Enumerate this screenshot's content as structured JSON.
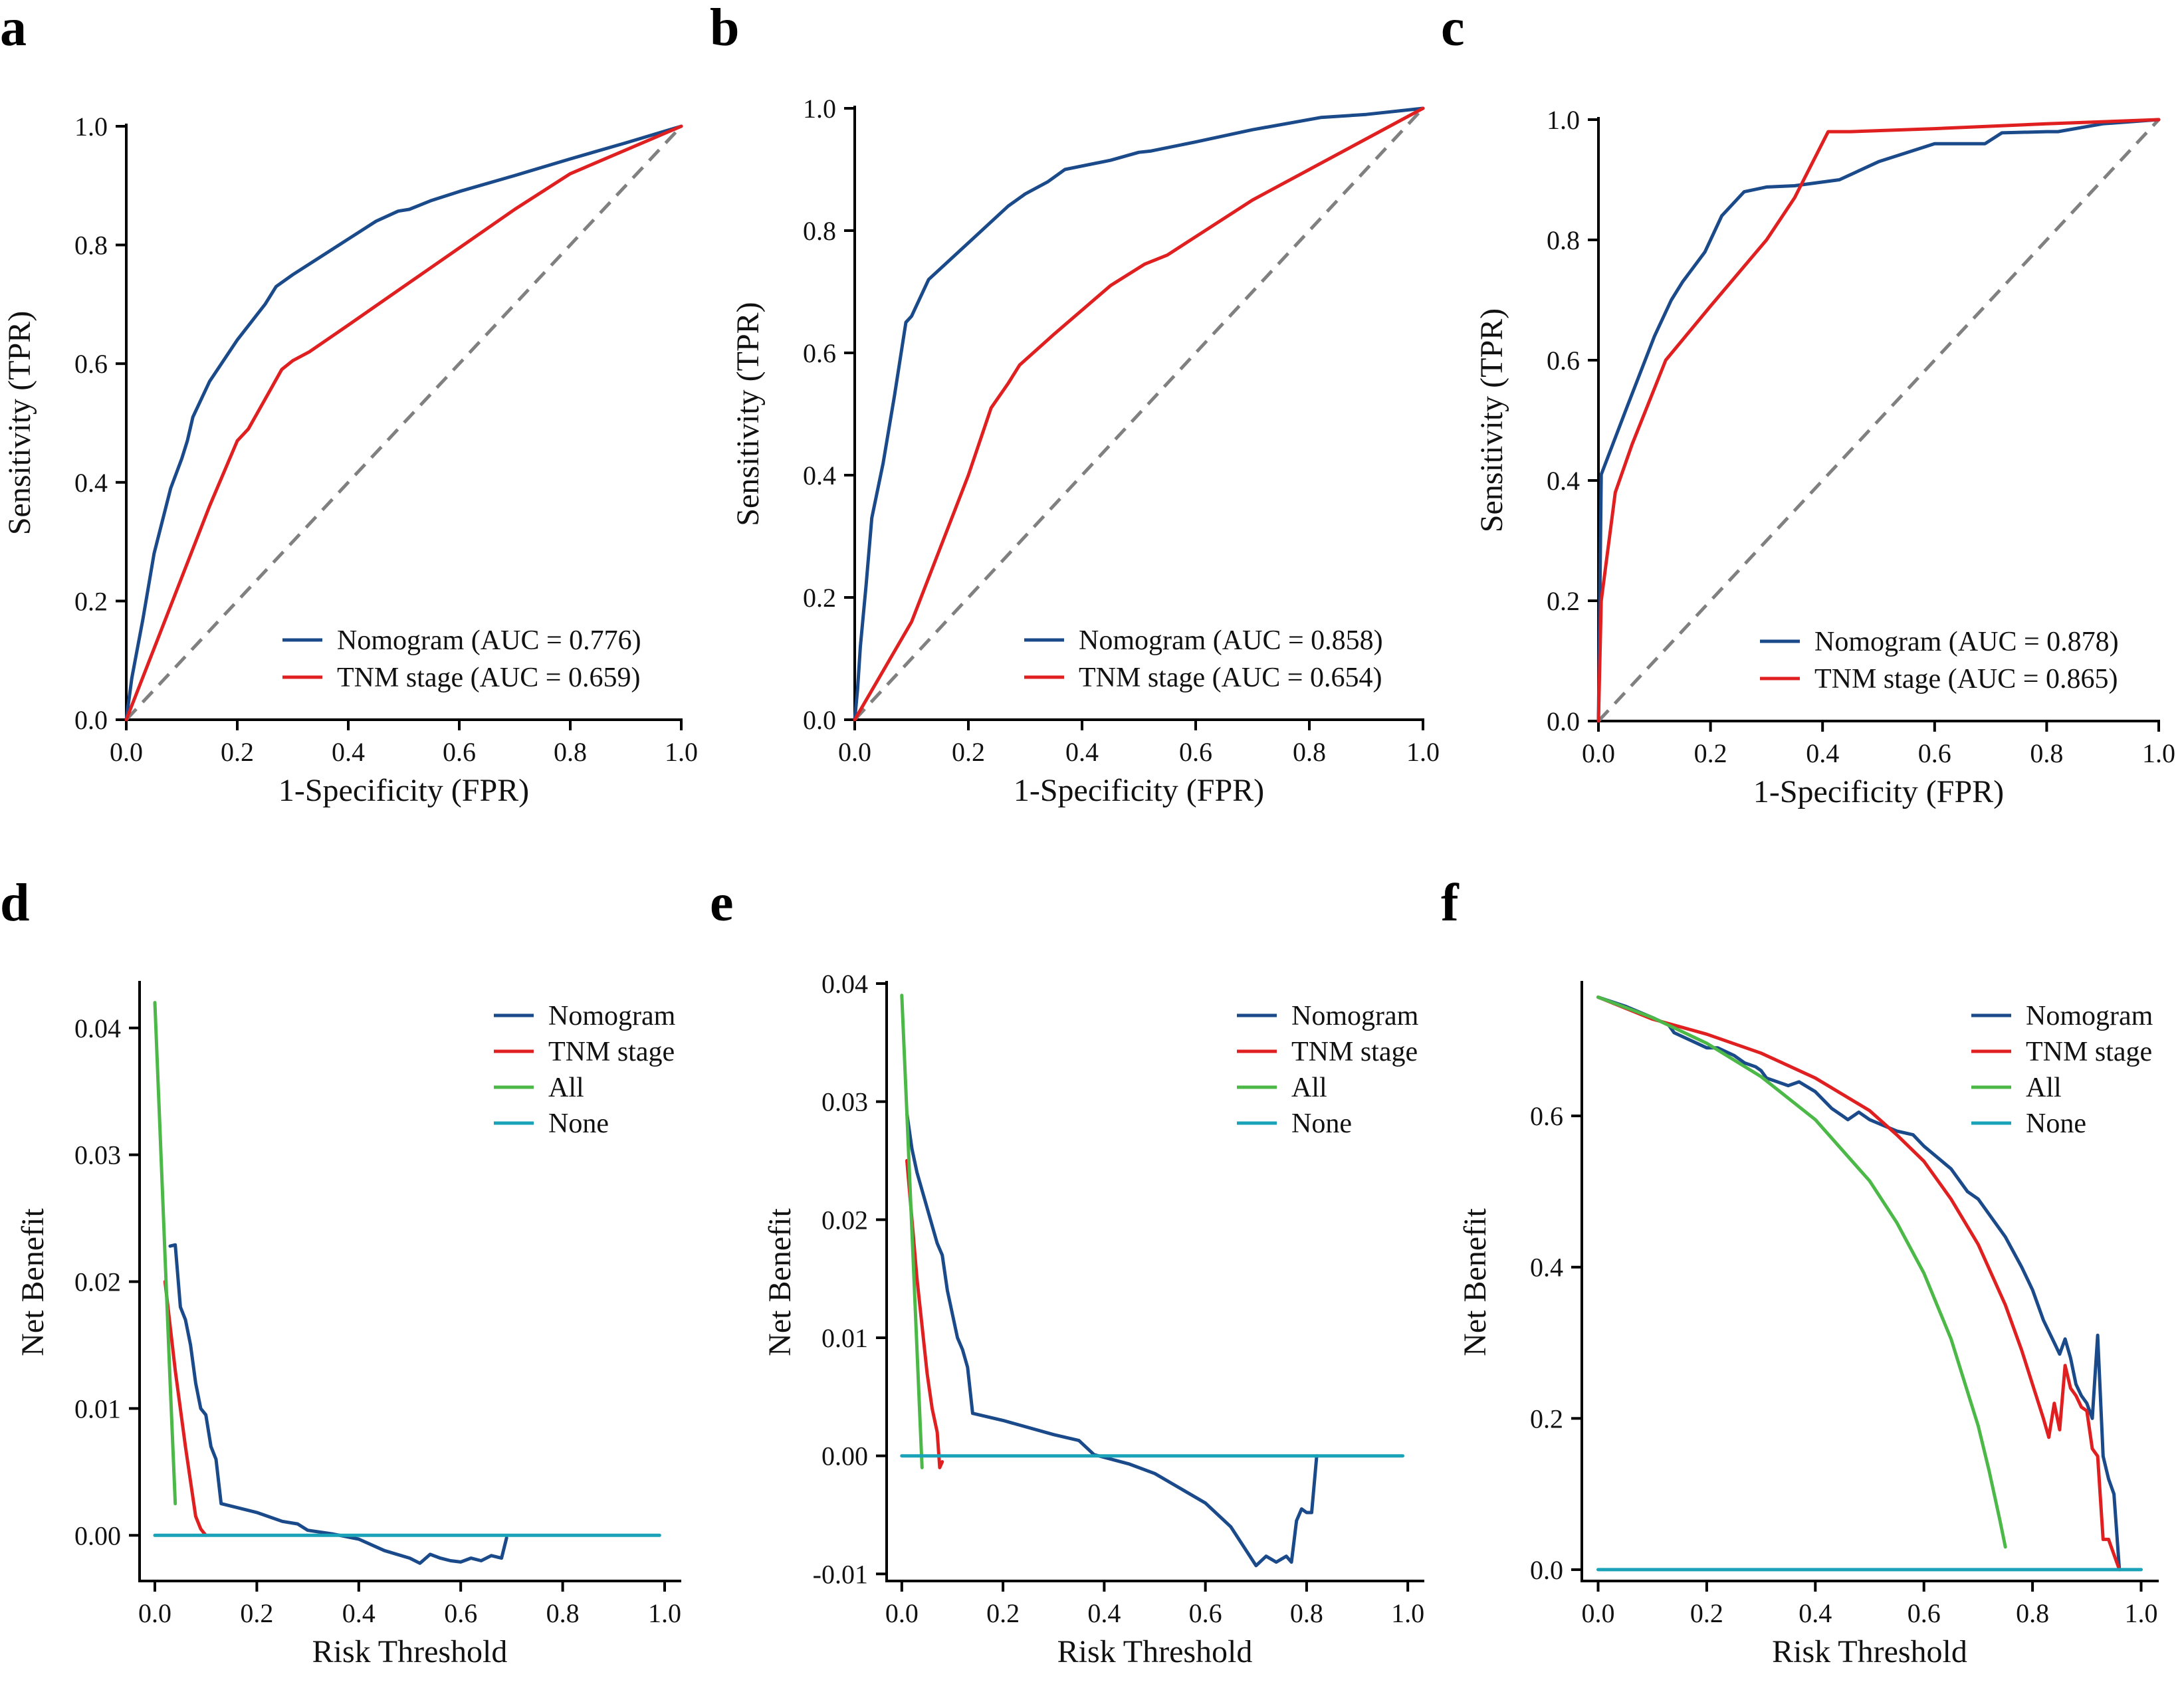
{
  "colors": {
    "nomogram": "#1a4a8a",
    "tnm": "#e02020",
    "all": "#4cb848",
    "none": "#1aa3b8",
    "reference": "#808080",
    "axis": "#000000"
  },
  "chart_data": [
    {
      "panel": "a",
      "type": "line",
      "kind": "roc",
      "xlabel": "1-Specificity (FPR)",
      "ylabel": "Sensitivity (TPR)",
      "xlim": [
        0,
        1
      ],
      "ylim": [
        0,
        1
      ],
      "xticks": [
        0.0,
        0.2,
        0.4,
        0.6,
        0.8,
        1.0
      ],
      "yticks": [
        0.0,
        0.2,
        0.4,
        0.6,
        0.8,
        1.0
      ],
      "legend_position": "bottom-right",
      "series": [
        {
          "name": "Nomogram (AUC = 0.776)",
          "color_key": "nomogram",
          "x": [
            0,
            0.01,
            0.03,
            0.05,
            0.08,
            0.1,
            0.11,
            0.12,
            0.15,
            0.2,
            0.25,
            0.27,
            0.3,
            0.35,
            0.4,
            0.45,
            0.49,
            0.51,
            0.55,
            0.6,
            0.7,
            0.8,
            0.9,
            1.0
          ],
          "y": [
            0,
            0.07,
            0.17,
            0.28,
            0.39,
            0.44,
            0.47,
            0.51,
            0.57,
            0.64,
            0.7,
            0.73,
            0.75,
            0.78,
            0.81,
            0.84,
            0.857,
            0.86,
            0.875,
            0.89,
            0.917,
            0.945,
            0.972,
            1.0
          ]
        },
        {
          "name": "TNM stage (AUC = 0.659)",
          "color_key": "tnm",
          "x": [
            0,
            0.05,
            0.1,
            0.15,
            0.2,
            0.22,
            0.25,
            0.28,
            0.3,
            0.33,
            0.4,
            0.5,
            0.6,
            0.7,
            0.8,
            0.9,
            1.0
          ],
          "y": [
            0,
            0.12,
            0.24,
            0.36,
            0.47,
            0.49,
            0.54,
            0.59,
            0.605,
            0.62,
            0.665,
            0.73,
            0.795,
            0.86,
            0.92,
            0.96,
            1.0
          ]
        }
      ]
    },
    {
      "panel": "b",
      "type": "line",
      "kind": "roc",
      "xlabel": "1-Specificity (FPR)",
      "ylabel": "Sensitivity (TPR)",
      "xlim": [
        0,
        1
      ],
      "ylim": [
        0,
        1
      ],
      "xticks": [
        0.0,
        0.2,
        0.4,
        0.6,
        0.8,
        1.0
      ],
      "yticks": [
        0.0,
        0.2,
        0.4,
        0.6,
        0.8,
        1.0
      ],
      "legend_position": "bottom-right",
      "series": [
        {
          "name": "Nomogram (AUC = 0.858)",
          "color_key": "nomogram",
          "x": [
            0,
            0.005,
            0.01,
            0.02,
            0.03,
            0.05,
            0.07,
            0.09,
            0.1,
            0.13,
            0.2,
            0.27,
            0.3,
            0.34,
            0.37,
            0.45,
            0.5,
            0.52,
            0.6,
            0.7,
            0.82,
            0.9,
            1.0
          ],
          "y": [
            0,
            0.05,
            0.12,
            0.22,
            0.33,
            0.42,
            0.53,
            0.65,
            0.66,
            0.72,
            0.78,
            0.84,
            0.86,
            0.88,
            0.9,
            0.915,
            0.928,
            0.93,
            0.945,
            0.965,
            0.985,
            0.99,
            1.0
          ]
        },
        {
          "name": "TNM stage (AUC = 0.654)",
          "color_key": "tnm",
          "x": [
            0,
            0.05,
            0.1,
            0.15,
            0.2,
            0.24,
            0.27,
            0.29,
            0.35,
            0.4,
            0.45,
            0.51,
            0.55,
            0.6,
            0.7,
            0.8,
            0.9,
            1.0
          ],
          "y": [
            0,
            0.08,
            0.16,
            0.28,
            0.4,
            0.51,
            0.55,
            0.58,
            0.63,
            0.67,
            0.71,
            0.745,
            0.76,
            0.79,
            0.85,
            0.9,
            0.95,
            1.0
          ]
        }
      ]
    },
    {
      "panel": "c",
      "type": "line",
      "kind": "roc",
      "xlabel": "1-Specificity (FPR)",
      "ylabel": "Sensitivity (TPR)",
      "xlim": [
        0,
        1
      ],
      "ylim": [
        0,
        1
      ],
      "xticks": [
        0.0,
        0.2,
        0.4,
        0.6,
        0.8,
        1.0
      ],
      "yticks": [
        0.0,
        0.2,
        0.4,
        0.6,
        0.8,
        1.0
      ],
      "legend_position": "bottom-right",
      "series": [
        {
          "name": "Nomogram (AUC = 0.878)",
          "color_key": "nomogram",
          "x": [
            0,
            0.005,
            0.05,
            0.1,
            0.13,
            0.15,
            0.19,
            0.22,
            0.25,
            0.26,
            0.3,
            0.35,
            0.43,
            0.5,
            0.6,
            0.69,
            0.72,
            0.8,
            0.82,
            0.9,
            1.0
          ],
          "y": [
            0,
            0.41,
            0.52,
            0.64,
            0.7,
            0.73,
            0.78,
            0.84,
            0.87,
            0.88,
            0.888,
            0.89,
            0.9,
            0.93,
            0.96,
            0.96,
            0.978,
            0.98,
            0.98,
            0.993,
            1.0
          ]
        },
        {
          "name": "TNM stage (AUC = 0.865)",
          "color_key": "tnm",
          "x": [
            0,
            0.005,
            0.03,
            0.06,
            0.12,
            0.2,
            0.3,
            0.35,
            0.41,
            0.45,
            0.6,
            0.8,
            1.0
          ],
          "y": [
            0,
            0.2,
            0.38,
            0.46,
            0.6,
            0.69,
            0.8,
            0.87,
            0.98,
            0.98,
            0.985,
            0.993,
            1.0
          ]
        }
      ]
    },
    {
      "panel": "d",
      "type": "line",
      "kind": "dca",
      "xlabel": "Risk Threshold",
      "ylabel": "Net Benefit",
      "xlim": [
        -0.03,
        1.03
      ],
      "ylim": [
        -0.0036,
        0.0435
      ],
      "xticks": [
        0.0,
        0.2,
        0.4,
        0.6,
        0.8,
        1.0
      ],
      "yticks": [
        0.0,
        0.01,
        0.02,
        0.03,
        0.04
      ],
      "yticklabels": [
        "0.00",
        "0.01",
        "0.02",
        "0.03",
        "0.04"
      ],
      "legend_position": "top-right",
      "series": [
        {
          "name": "Nomogram",
          "color_key": "nomogram",
          "x": [
            0.03,
            0.04,
            0.05,
            0.06,
            0.07,
            0.08,
            0.09,
            0.1,
            0.11,
            0.12,
            0.13,
            0.2,
            0.25,
            0.28,
            0.3,
            0.35,
            0.4,
            0.45,
            0.5,
            0.52,
            0.54,
            0.56,
            0.58,
            0.6,
            0.62,
            0.64,
            0.66,
            0.68,
            0.69
          ],
          "y": [
            0.0228,
            0.0229,
            0.018,
            0.017,
            0.015,
            0.012,
            0.01,
            0.0095,
            0.007,
            0.006,
            0.0025,
            0.0018,
            0.0011,
            0.0009,
            0.0004,
            0.0001,
            -0.0003,
            -0.0012,
            -0.0018,
            -0.0022,
            -0.0015,
            -0.0018,
            -0.002,
            -0.0021,
            -0.0018,
            -0.002,
            -0.0016,
            -0.0018,
            -0.0002
          ]
        },
        {
          "name": "TNM stage",
          "color_key": "tnm",
          "x": [
            0.02,
            0.04,
            0.06,
            0.08,
            0.09,
            0.1
          ],
          "y": [
            0.02,
            0.013,
            0.007,
            0.0015,
            0.0005,
            0
          ]
        },
        {
          "name": "All",
          "color_key": "all",
          "x": [
            0.0,
            0.01,
            0.02,
            0.03,
            0.04
          ],
          "y": [
            0.042,
            0.032,
            0.022,
            0.012,
            0.0025
          ]
        },
        {
          "name": "None",
          "color_key": "none",
          "x": [
            0.0,
            0.99
          ],
          "y": [
            0,
            0
          ]
        }
      ]
    },
    {
      "panel": "e",
      "type": "line",
      "kind": "dca",
      "xlabel": "Risk Threshold",
      "ylabel": "Net Benefit",
      "xlim": [
        -0.03,
        1.03
      ],
      "ylim": [
        -0.0106,
        0.04
      ],
      "xticks": [
        0.0,
        0.2,
        0.4,
        0.6,
        0.8,
        1.0
      ],
      "yticks": [
        -0.01,
        0.0,
        0.01,
        0.02,
        0.03,
        0.04
      ],
      "yticklabels": [
        "-0.01",
        "0.00",
        "0.01",
        "0.02",
        "0.03",
        "0.04"
      ],
      "legend_position": "top-right",
      "series": [
        {
          "name": "Nomogram",
          "color_key": "nomogram",
          "x": [
            0.01,
            0.02,
            0.03,
            0.05,
            0.07,
            0.08,
            0.09,
            0.1,
            0.11,
            0.12,
            0.13,
            0.14,
            0.2,
            0.3,
            0.35,
            0.38,
            0.45,
            0.5,
            0.6,
            0.65,
            0.7,
            0.72,
            0.74,
            0.76,
            0.77,
            0.78,
            0.79,
            0.8,
            0.81,
            0.82
          ],
          "y": [
            0.029,
            0.026,
            0.024,
            0.021,
            0.018,
            0.017,
            0.014,
            0.012,
            0.01,
            0.009,
            0.0075,
            0.0036,
            0.003,
            0.0018,
            0.0013,
            0.0001,
            -0.0007,
            -0.0015,
            -0.004,
            -0.006,
            -0.0093,
            -0.0085,
            -0.009,
            -0.0085,
            -0.009,
            -0.0055,
            -0.0045,
            -0.0048,
            -0.0048,
            0
          ]
        },
        {
          "name": "TNM stage",
          "color_key": "tnm",
          "x": [
            0.01,
            0.02,
            0.03,
            0.04,
            0.05,
            0.06,
            0.07,
            0.075,
            0.08
          ],
          "y": [
            0.025,
            0.02,
            0.015,
            0.011,
            0.007,
            0.004,
            0.002,
            -0.001,
            -0.0005
          ]
        },
        {
          "name": "All",
          "color_key": "all",
          "x": [
            0.0,
            0.01,
            0.02,
            0.03,
            0.04
          ],
          "y": [
            0.039,
            0.029,
            0.019,
            0.009,
            -0.001
          ]
        },
        {
          "name": "None",
          "color_key": "none",
          "x": [
            0.0,
            0.99
          ],
          "y": [
            0,
            0
          ]
        }
      ]
    },
    {
      "panel": "f",
      "type": "line",
      "kind": "dca",
      "xlabel": "Risk Threshold",
      "ylabel": "Net Benefit",
      "xlim": [
        -0.03,
        1.03
      ],
      "ylim": [
        -0.015,
        0.775
      ],
      "xticks": [
        0.0,
        0.2,
        0.4,
        0.6,
        0.8,
        1.0
      ],
      "yticks": [
        0.0,
        0.2,
        0.4,
        0.6
      ],
      "yticklabels": [
        "0.0",
        "0.2",
        "0.4",
        "0.6"
      ],
      "legend_position": "top-right",
      "series": [
        {
          "name": "Nomogram",
          "color_key": "nomogram",
          "x": [
            0.0,
            0.05,
            0.1,
            0.13,
            0.14,
            0.2,
            0.22,
            0.25,
            0.27,
            0.29,
            0.3,
            0.31,
            0.35,
            0.37,
            0.4,
            0.43,
            0.45,
            0.46,
            0.48,
            0.5,
            0.55,
            0.58,
            0.6,
            0.65,
            0.68,
            0.7,
            0.72,
            0.75,
            0.78,
            0.8,
            0.82,
            0.84,
            0.85,
            0.86,
            0.87,
            0.88,
            0.89,
            0.9,
            0.91,
            0.92,
            0.93,
            0.94,
            0.95,
            0.96
          ],
          "y": [
            0.757,
            0.745,
            0.73,
            0.72,
            0.71,
            0.69,
            0.69,
            0.68,
            0.67,
            0.665,
            0.66,
            0.65,
            0.64,
            0.645,
            0.632,
            0.61,
            0.6,
            0.595,
            0.605,
            0.595,
            0.58,
            0.575,
            0.56,
            0.53,
            0.5,
            0.49,
            0.47,
            0.44,
            0.4,
            0.37,
            0.33,
            0.3,
            0.285,
            0.305,
            0.28,
            0.245,
            0.23,
            0.22,
            0.2,
            0.31,
            0.15,
            0.12,
            0.1,
            0.0
          ]
        },
        {
          "name": "TNM stage",
          "color_key": "tnm",
          "x": [
            0.0,
            0.1,
            0.2,
            0.3,
            0.4,
            0.5,
            0.55,
            0.6,
            0.65,
            0.7,
            0.75,
            0.78,
            0.8,
            0.82,
            0.83,
            0.84,
            0.85,
            0.86,
            0.87,
            0.88,
            0.89,
            0.9,
            0.91,
            0.92,
            0.93,
            0.94,
            0.95,
            0.96
          ],
          "y": [
            0.757,
            0.728,
            0.708,
            0.683,
            0.65,
            0.607,
            0.575,
            0.54,
            0.49,
            0.43,
            0.35,
            0.29,
            0.245,
            0.2,
            0.175,
            0.22,
            0.185,
            0.27,
            0.24,
            0.23,
            0.215,
            0.21,
            0.16,
            0.15,
            0.04,
            0.04,
            0.02,
            0.0
          ]
        },
        {
          "name": "All",
          "color_key": "all",
          "x": [
            0.0,
            0.1,
            0.2,
            0.3,
            0.4,
            0.5,
            0.55,
            0.6,
            0.65,
            0.7,
            0.72,
            0.74,
            0.75
          ],
          "y": [
            0.757,
            0.73,
            0.696,
            0.652,
            0.595,
            0.514,
            0.459,
            0.392,
            0.305,
            0.19,
            0.131,
            0.065,
            0.03
          ]
        },
        {
          "name": "None",
          "color_key": "none",
          "x": [
            0.0,
            1.0
          ],
          "y": [
            0,
            0
          ]
        }
      ]
    }
  ]
}
